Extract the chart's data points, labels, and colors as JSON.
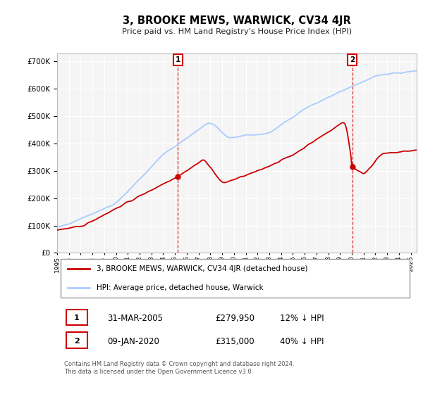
{
  "title": "3, BROOKE MEWS, WARWICK, CV34 4JR",
  "subtitle": "Price paid vs. HM Land Registry's House Price Index (HPI)",
  "ylim": [
    0,
    730000
  ],
  "yticks": [
    0,
    100000,
    200000,
    300000,
    400000,
    500000,
    600000,
    700000
  ],
  "sale1": {
    "date_str": "31-MAR-2005",
    "price": 279950,
    "label": "1",
    "hpi_pct": "12% ↓ HPI",
    "year": 2005.25
  },
  "sale2": {
    "date_str": "09-JAN-2020",
    "price": 315000,
    "label": "2",
    "hpi_pct": "40% ↓ HPI",
    "year": 2020.03
  },
  "legend_property": "3, BROOKE MEWS, WARWICK, CV34 4JR (detached house)",
  "legend_hpi": "HPI: Average price, detached house, Warwick",
  "property_color": "#cc0000",
  "hpi_color": "#aaccff",
  "sale_label_box_color": "#cc0000",
  "footer": "Contains HM Land Registry data © Crown copyright and database right 2024.\nThis data is licensed under the Open Government Licence v3.0.",
  "background_color": "#ffffff"
}
